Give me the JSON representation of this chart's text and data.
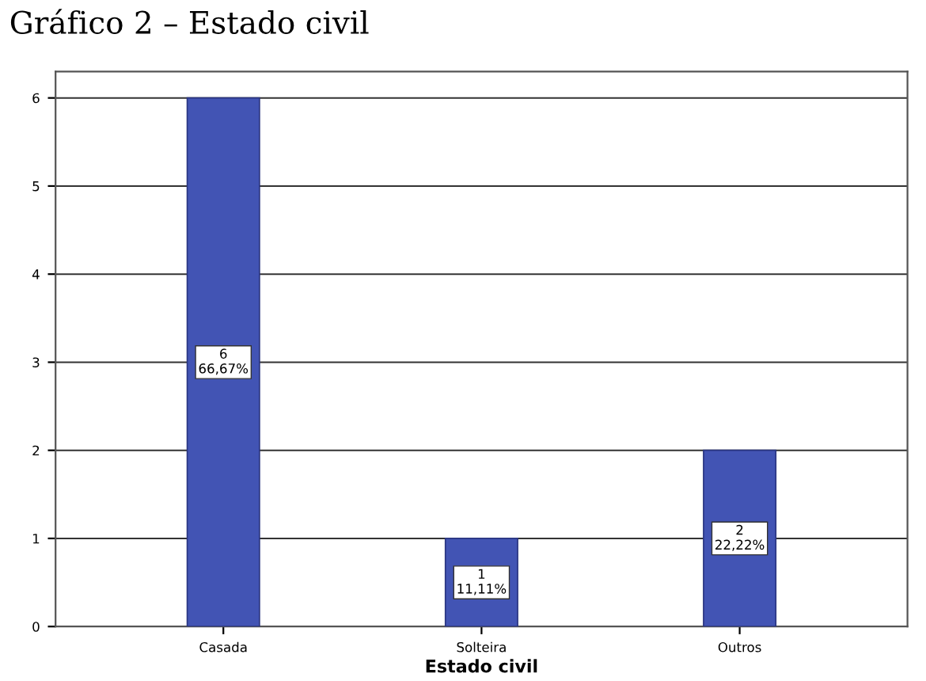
{
  "chart_data": {
    "type": "bar",
    "title": "Gráfico 2 – Estado civil",
    "xlabel": "Estado civil",
    "categories": [
      "Casada",
      "Solteira",
      "Outros"
    ],
    "values": [
      6,
      1,
      2
    ],
    "value_labels": [
      "6\n66,67%",
      "1\n11,11%",
      "2\n22,22%"
    ],
    "color": "#4254b4",
    "ylim": [
      0,
      6.3
    ],
    "yticks": [
      0,
      1,
      2,
      3,
      4,
      5,
      6
    ],
    "grid": "y"
  }
}
